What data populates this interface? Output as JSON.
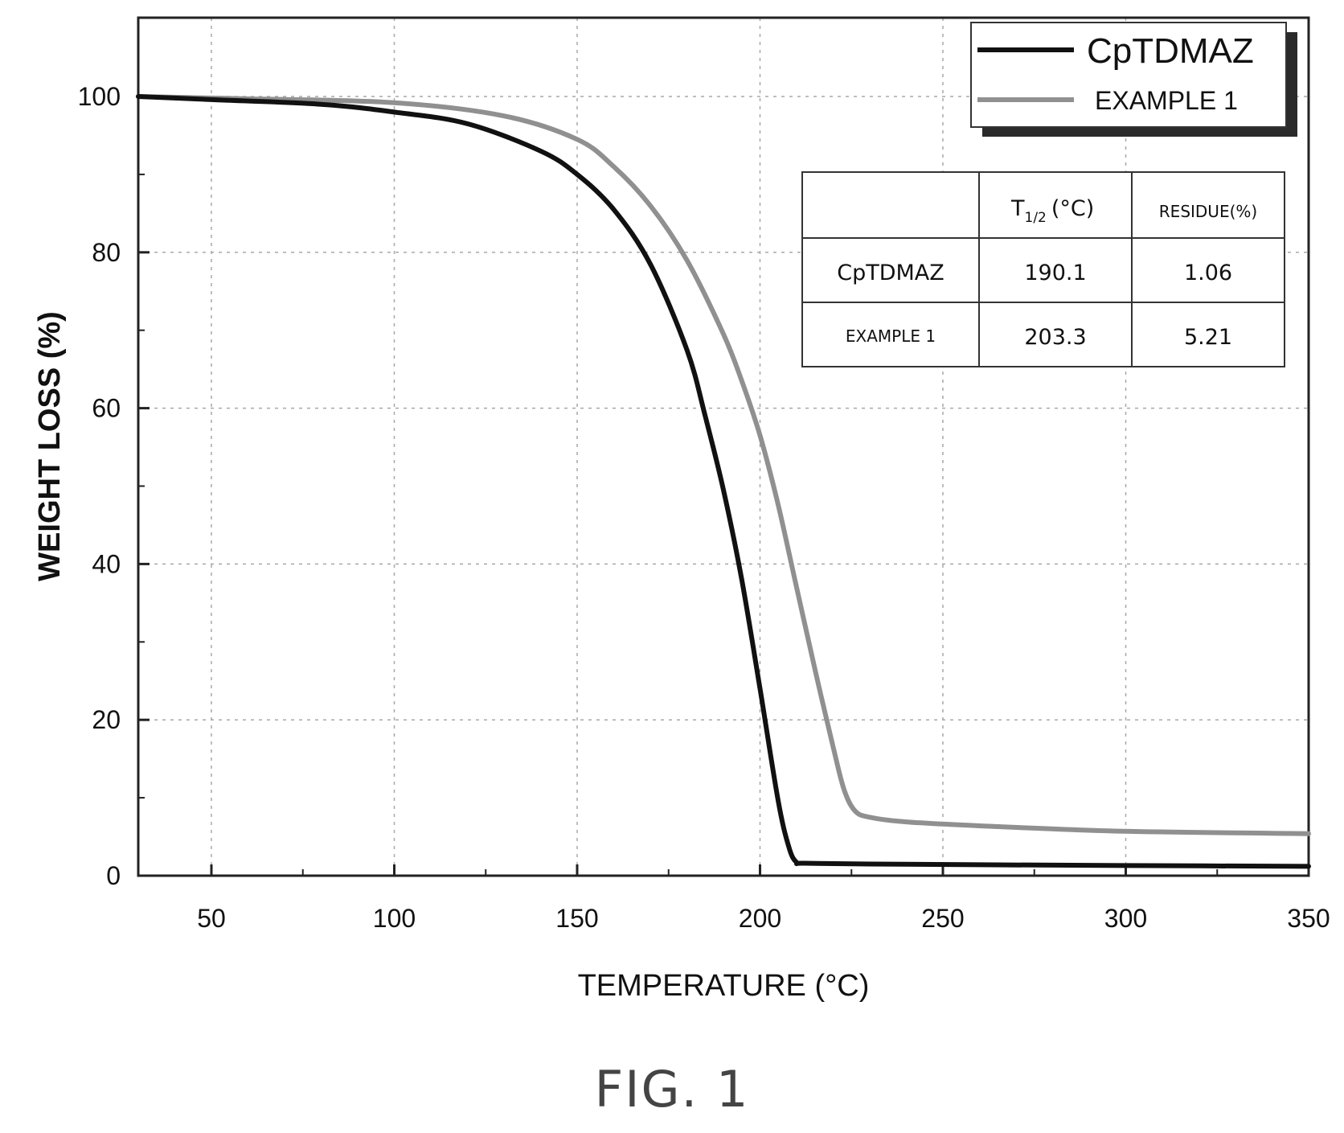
{
  "chart_data": {
    "type": "line",
    "xlabel": "TEMPERATURE (°C)",
    "ylabel": "WEIGHT LOSS  (%)",
    "xlim": [
      30,
      350
    ],
    "ylim": [
      0,
      110
    ],
    "xticks": [
      50,
      100,
      150,
      200,
      250,
      300,
      350
    ],
    "yticks": [
      0,
      20,
      40,
      60,
      80,
      100
    ],
    "grid": true,
    "legend_position": "top-right",
    "series": [
      {
        "name": "CpTDMAZ",
        "color": "#111111",
        "x": [
          30,
          50,
          80,
          100,
          120,
          140,
          150,
          160,
          170,
          180,
          185,
          190,
          195,
          200,
          205,
          208,
          210,
          212,
          230,
          260,
          300,
          350
        ],
        "y": [
          100,
          99.6,
          99.0,
          98.0,
          96.5,
          93.0,
          90.0,
          85.5,
          78.5,
          67.5,
          59.0,
          49.5,
          38.0,
          24.0,
          9.5,
          3.5,
          1.7,
          1.6,
          1.5,
          1.4,
          1.3,
          1.2
        ]
      },
      {
        "name": "EXAMPLE 1",
        "color": "#909090",
        "x": [
          30,
          60,
          100,
          130,
          150,
          160,
          170,
          180,
          190,
          195,
          200,
          205,
          210,
          215,
          220,
          223,
          226,
          230,
          240,
          260,
          300,
          350
        ],
        "y": [
          100,
          99.7,
          99.2,
          97.5,
          94.5,
          91.0,
          86.0,
          79.0,
          69.5,
          63.5,
          56.5,
          47.5,
          37.0,
          26.5,
          16.5,
          11.0,
          8.3,
          7.5,
          6.9,
          6.4,
          5.7,
          5.4
        ]
      }
    ],
    "inset_table": {
      "headers": [
        "",
        "T",
        "(°C)",
        "RESIDUE(%)"
      ],
      "subscript": "1/2",
      "rows": [
        [
          "CpTDMAZ",
          "190.1",
          "1.06"
        ],
        [
          "EXAMPLE 1",
          "203.3",
          "5.21"
        ]
      ]
    }
  },
  "caption": "FIG. 1"
}
